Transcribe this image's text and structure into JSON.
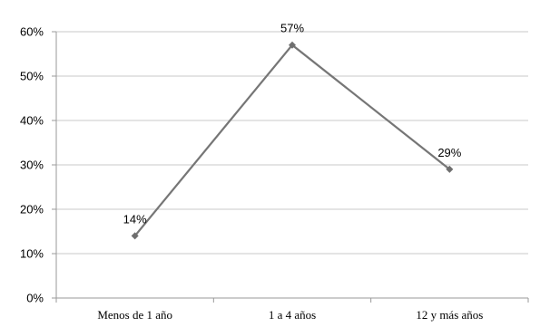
{
  "chart_data": {
    "type": "line",
    "title": "",
    "xlabel": "",
    "ylabel": "",
    "categories": [
      "Menos de 1 año",
      "1 a 4 años",
      "12 y más años"
    ],
    "series": [
      {
        "values": [
          14,
          57,
          29
        ],
        "data_labels": [
          "14%",
          "57%",
          "29%"
        ],
        "color": "#767676"
      }
    ],
    "ylim": [
      0,
      60
    ],
    "yticks": [
      0,
      10,
      20,
      30,
      40,
      50,
      60
    ],
    "ytick_labels": [
      "0%",
      "10%",
      "20%",
      "30%",
      "40%",
      "50%",
      "60%"
    ],
    "grid": true,
    "legend": "none"
  }
}
